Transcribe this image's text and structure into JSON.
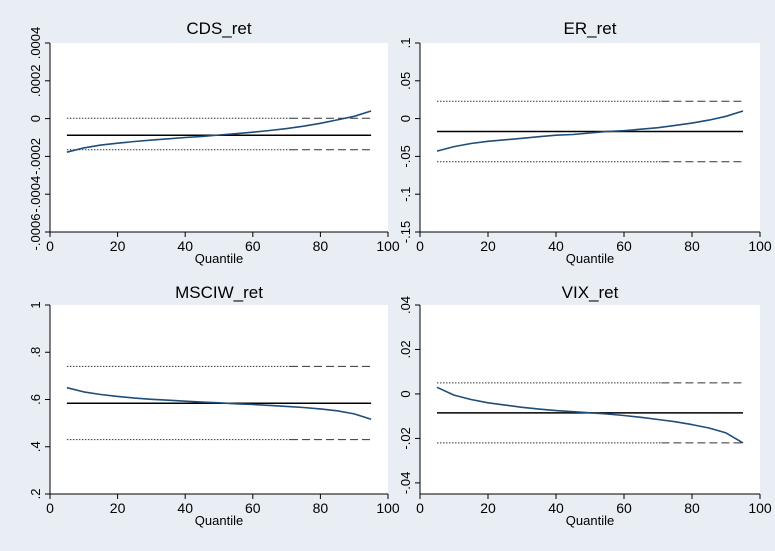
{
  "chart_data": [
    {
      "type": "line",
      "title": "CDS_ret",
      "xlabel": "Quantile",
      "ylabel": "",
      "xlim": [
        0,
        100
      ],
      "ylim": [
        -0.0006,
        0.0004
      ],
      "xticks": [
        0,
        20,
        40,
        60,
        80,
        100
      ],
      "xtick_labels": [
        "0",
        "20",
        "40",
        "60",
        "80",
        "100"
      ],
      "yticks": [
        -0.0006,
        -0.0004,
        -0.0002,
        0,
        0.0002,
        0.0004
      ],
      "ytick_labels": [
        "-.0006",
        "-.0004",
        "-.0002",
        "0",
        ".0002",
        ".0004"
      ],
      "grid": false,
      "x": [
        5,
        10,
        15,
        20,
        25,
        30,
        35,
        40,
        45,
        50,
        55,
        60,
        65,
        70,
        75,
        80,
        85,
        90,
        95
      ],
      "quantile_coef": [
        -0.000178,
        -0.000155,
        -0.00014,
        -0.00013,
        -0.000121,
        -0.000114,
        -0.000107,
        -0.0001,
        -9.4e-05,
        -8.7e-05,
        -8e-05,
        -7.2e-05,
        -6.3e-05,
        -5.3e-05,
        -4e-05,
        -2.5e-05,
        -7e-06,
        1.2e-05,
        4e-05
      ],
      "ols_coef": -8.8e-05,
      "upper_bound": 2e-06,
      "lower_bound": -0.000165
    },
    {
      "type": "line",
      "title": "ER_ret",
      "xlabel": "Quantile",
      "ylabel": "",
      "xlim": [
        0,
        100
      ],
      "ylim": [
        -0.15,
        0.1
      ],
      "xticks": [
        0,
        20,
        40,
        60,
        80,
        100
      ],
      "xtick_labels": [
        "0",
        "20",
        "40",
        "60",
        "80",
        "100"
      ],
      "yticks": [
        -0.15,
        -0.1,
        -0.05,
        0,
        0.05,
        0.1
      ],
      "ytick_labels": [
        "-.15",
        "-.1",
        "-.05",
        "0",
        ".05",
        ".1"
      ],
      "grid": false,
      "x": [
        5,
        10,
        15,
        20,
        25,
        30,
        35,
        40,
        45,
        50,
        55,
        60,
        65,
        70,
        75,
        80,
        85,
        90,
        95
      ],
      "quantile_coef": [
        -0.043,
        -0.037,
        -0.033,
        -0.03,
        -0.028,
        -0.026,
        -0.024,
        -0.022,
        -0.021,
        -0.019,
        -0.017,
        -0.016,
        -0.014,
        -0.012,
        -0.009,
        -0.006,
        -0.002,
        0.003,
        0.01
      ],
      "ols_coef": -0.017,
      "upper_bound": 0.023,
      "lower_bound": -0.057
    },
    {
      "type": "line",
      "title": "MSCIW_ret",
      "xlabel": "Quantile",
      "ylabel": "",
      "xlim": [
        0,
        100
      ],
      "ylim": [
        0.2,
        1.0
      ],
      "xticks": [
        0,
        20,
        40,
        60,
        80,
        100
      ],
      "xtick_labels": [
        "0",
        "20",
        "40",
        "60",
        "80",
        "100"
      ],
      "yticks": [
        0.2,
        0.4,
        0.6,
        0.8,
        1.0
      ],
      "ytick_labels": [
        ".2",
        ".4",
        ".6",
        ".8",
        "1"
      ],
      "grid": false,
      "x": [
        5,
        10,
        15,
        20,
        25,
        30,
        35,
        40,
        45,
        50,
        55,
        60,
        65,
        70,
        75,
        80,
        85,
        90,
        95
      ],
      "quantile_coef": [
        0.65,
        0.632,
        0.621,
        0.613,
        0.606,
        0.601,
        0.597,
        0.593,
        0.589,
        0.586,
        0.582,
        0.579,
        0.575,
        0.571,
        0.566,
        0.56,
        0.552,
        0.539,
        0.516
      ],
      "ols_coef": 0.584,
      "upper_bound": 0.74,
      "lower_bound": 0.43
    },
    {
      "type": "line",
      "title": "VIX_ret",
      "xlabel": "Quantile",
      "ylabel": "",
      "xlim": [
        0,
        100
      ],
      "ylim": [
        -0.045,
        0.04
      ],
      "xticks": [
        0,
        20,
        40,
        60,
        80,
        100
      ],
      "xtick_labels": [
        "0",
        "20",
        "40",
        "60",
        "80",
        "100"
      ],
      "yticks": [
        -0.04,
        -0.02,
        0,
        0.02,
        0.04
      ],
      "ytick_labels": [
        "-.04",
        "-.02",
        "0",
        ".02",
        ".04"
      ],
      "grid": false,
      "x": [
        5,
        10,
        15,
        20,
        25,
        30,
        35,
        40,
        45,
        50,
        55,
        60,
        65,
        70,
        75,
        80,
        85,
        90,
        95
      ],
      "quantile_coef": [
        0.003,
        -0.0005,
        -0.0025,
        -0.004,
        -0.005,
        -0.006,
        -0.0068,
        -0.0075,
        -0.008,
        -0.0085,
        -0.009,
        -0.0097,
        -0.0105,
        -0.0115,
        -0.0125,
        -0.0138,
        -0.0153,
        -0.0175,
        -0.022
      ],
      "ols_coef": -0.0085,
      "upper_bound": 0.005,
      "lower_bound": -0.022
    }
  ],
  "colors": {
    "background": "#e8eef3",
    "plot_area": "#ffffff",
    "quantile_line": "#1f4e79",
    "ols_line": "#000000",
    "bound_line": "#333333"
  }
}
